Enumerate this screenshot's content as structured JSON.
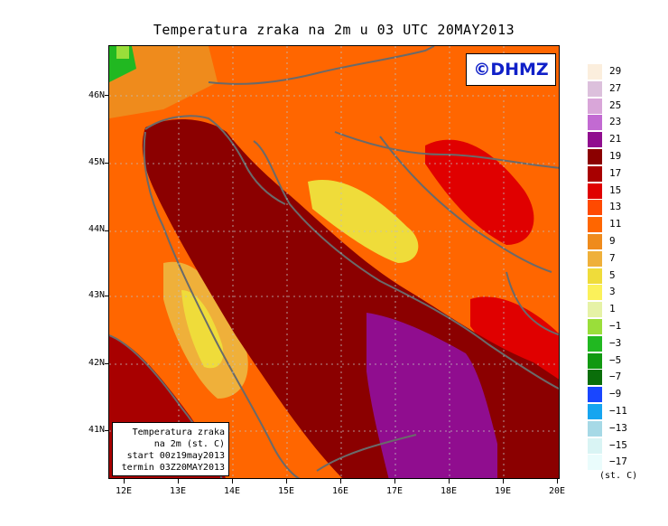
{
  "title": "Temperatura zraka na 2m u 03 UTC 20MAY2013",
  "logo": "©DHMZ",
  "info": {
    "line1": "Temperatura zraka",
    "line2": "na 2m (st. C)",
    "line3": "start 00z19may2013",
    "line4": "termin 03Z20MAY2013"
  },
  "lat_labels": [
    "46N",
    "45N",
    "44N",
    "43N",
    "42N",
    "41N"
  ],
  "lon_labels": [
    "12E",
    "13E",
    "14E",
    "15E",
    "16E",
    "17E",
    "18E",
    "19E",
    "20E"
  ],
  "legend": {
    "unit": "(st. C)",
    "labels": [
      "29",
      "27",
      "25",
      "23",
      "21",
      "19",
      "17",
      "15",
      "13",
      "11",
      "9",
      "7",
      "5",
      "3",
      "1",
      "−1",
      "−3",
      "−5",
      "−7",
      "−9",
      "−11",
      "−13",
      "−15",
      "−17"
    ],
    "colors": [
      "#fbeedd",
      "#dcc0dc",
      "#d9a6d9",
      "#c26ad2",
      "#900d8f",
      "#8b0000",
      "#a80000",
      "#e00000",
      "#ff4a00",
      "#ff6600",
      "#ef8b1c",
      "#efb03a",
      "#efdc3a",
      "#fbf15a",
      "#e6f2a6",
      "#9ade3a",
      "#21b821",
      "#119911",
      "#0a6e0a",
      "#1946ff",
      "#16a5f0",
      "#a6d9e6",
      "#d9f4f4",
      "#eafcfc"
    ]
  },
  "colors": {
    "sea_warm": "#8b0000",
    "sea_hot": "#a80000",
    "land_orange": "#ff6600",
    "land_light": "#ef8b1c",
    "land_yellow": "#efdc3a",
    "land_red": "#e00000",
    "purple": "#900d8f",
    "green": "#21b821",
    "border": "#6a6a6a",
    "logo": "#1020c8"
  }
}
